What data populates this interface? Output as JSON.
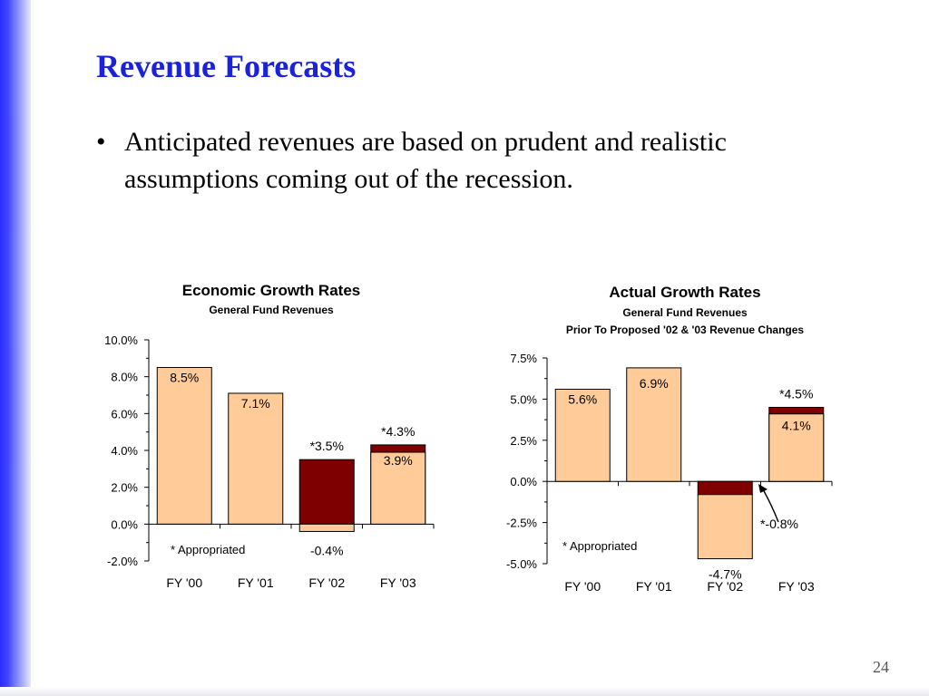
{
  "slide": {
    "title": "Revenue Forecasts",
    "bullet_marker": "•",
    "bullet_text": "Anticipated revenues are based on prudent and realistic assumptions coming out of the recession.",
    "page_number": "24"
  },
  "colors": {
    "title": "#1a22dd",
    "bar_fill": "#ffcc99",
    "appropriated_fill": "#7f0000",
    "side_bar": "#2a2cff"
  },
  "chart_data": [
    {
      "type": "bar",
      "title": "Economic Growth Rates",
      "subtitle": "General Fund Revenues",
      "categories": [
        "FY '00",
        "FY '01",
        "FY '02",
        "FY '03"
      ],
      "yticks": [
        "10.0%",
        "8.0%",
        "6.0%",
        "4.0%",
        "2.0%",
        "0.0%",
        "-2.0%"
      ],
      "ylim": [
        -2.0,
        10.0
      ],
      "unit": "%",
      "series": [
        {
          "name": "",
          "values": [
            8.5,
            7.1,
            -0.4,
            3.9
          ]
        },
        {
          "name": "Appropriated",
          "values": [
            null,
            null,
            3.5,
            4.3
          ]
        }
      ],
      "labels": [
        "8.5%",
        "7.1%",
        "-0.4%",
        "3.9%"
      ],
      "appropriated_labels": [
        "",
        "",
        "*3.5%",
        "*4.3%"
      ],
      "footnote": "* Appropriated"
    },
    {
      "type": "bar",
      "title": "Actual Growth Rates",
      "subtitle": "General Fund Revenues",
      "subtitle2": "Prior To Proposed '02 & '03 Revenue Changes",
      "categories": [
        "FY '00",
        "FY '01",
        "FY '02",
        "FY '03"
      ],
      "yticks": [
        "7.5%",
        "5.0%",
        "2.5%",
        "0.0%",
        "-2.5%",
        "-5.0%"
      ],
      "ylim": [
        -5.0,
        7.5
      ],
      "unit": "%",
      "series": [
        {
          "name": "",
          "values": [
            5.6,
            6.9,
            -4.7,
            4.1
          ]
        },
        {
          "name": "Appropriated",
          "values": [
            null,
            null,
            -0.8,
            4.5
          ]
        }
      ],
      "labels": [
        "5.6%",
        "6.9%",
        "-4.7%",
        "4.1%"
      ],
      "appropriated_labels": [
        "",
        "",
        "*-0.8%",
        "*4.5%"
      ],
      "footnote": "* Appropriated"
    }
  ]
}
